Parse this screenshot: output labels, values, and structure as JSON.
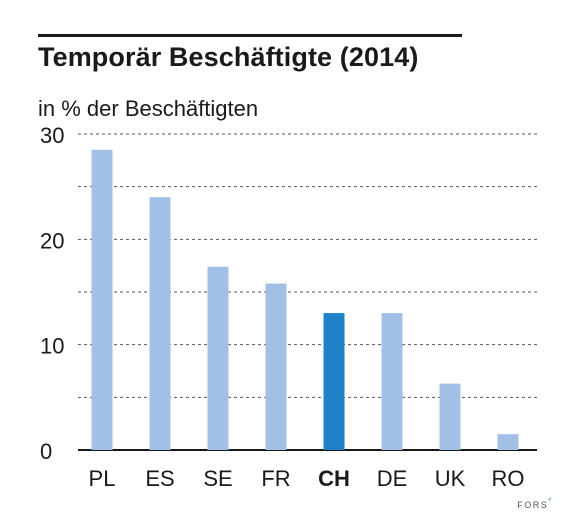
{
  "title": "Temporär Beschäftigte (2014)",
  "brand": {
    "name": "FORS",
    "mark": "°"
  },
  "chart_data": {
    "type": "bar",
    "title": "Temporär Beschäftigte (2014)",
    "ylabel": "in % der Beschäftigten",
    "xlabel": "",
    "categories": [
      "PL",
      "ES",
      "SE",
      "FR",
      "CH",
      "DE",
      "UK",
      "RO"
    ],
    "values": [
      28.5,
      24.0,
      17.4,
      15.8,
      13.0,
      13.0,
      6.3,
      1.5
    ],
    "highlight": "CH",
    "ylim": [
      0,
      30
    ],
    "yticks": [
      0,
      10,
      20,
      30
    ],
    "grid": true,
    "legend": "none",
    "colors": {
      "bar": "#a2c0e6",
      "highlight": "#1f82c8",
      "grid": "#555555",
      "text": "#1a1a1a"
    }
  }
}
